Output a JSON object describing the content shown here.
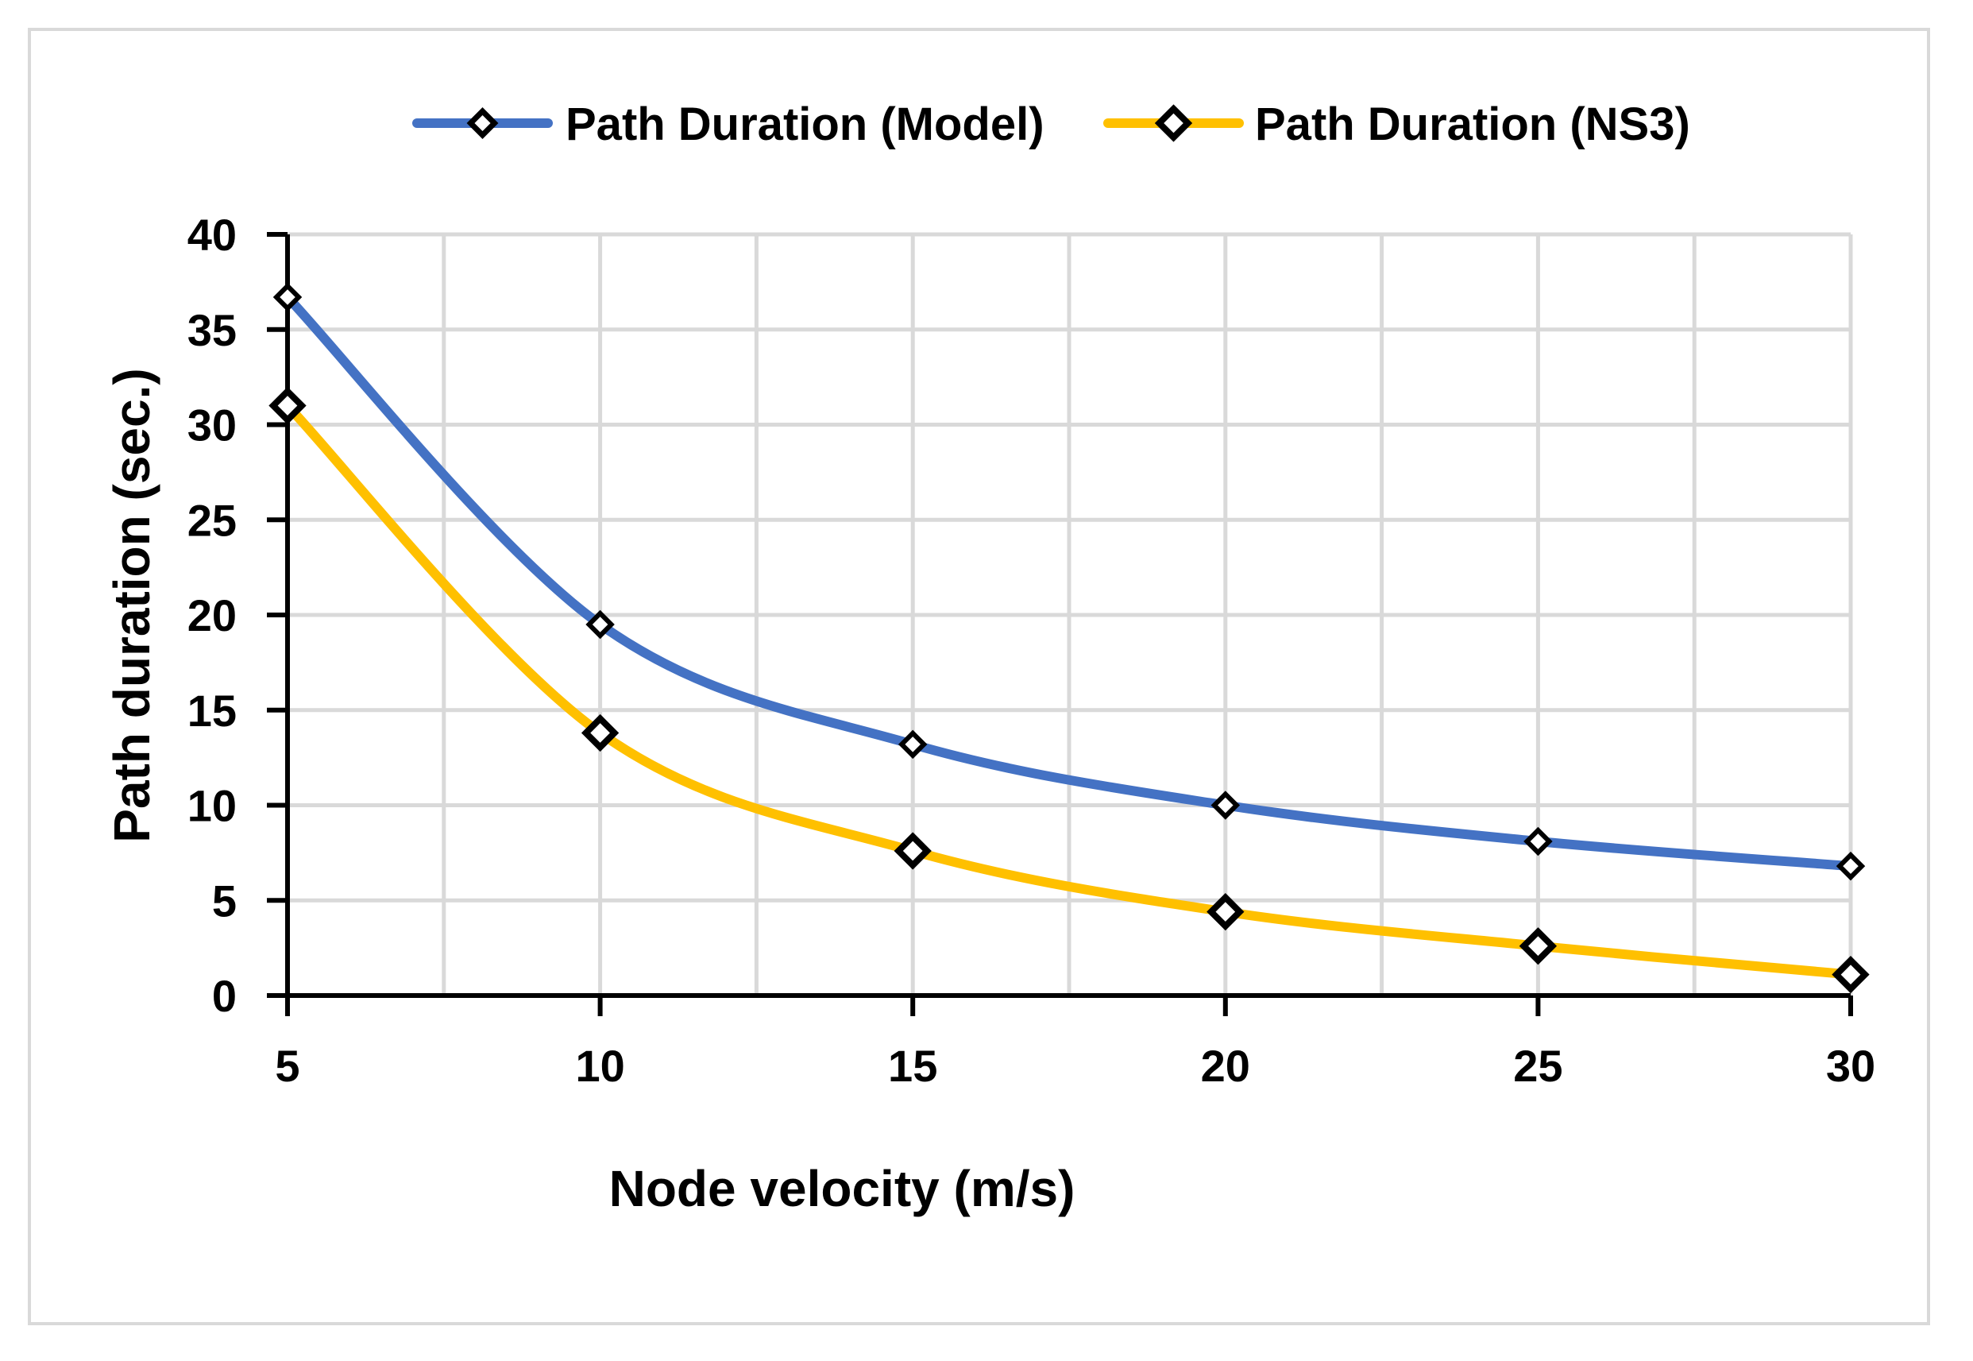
{
  "chart_data": {
    "type": "line",
    "title": "",
    "xlabel": "Node velocity (m/s)",
    "ylabel": "Path duration (sec.)",
    "x": [
      5,
      10,
      15,
      20,
      25,
      30
    ],
    "xlim": [
      5,
      30
    ],
    "ylim": [
      0,
      40
    ],
    "x_ticks": [
      5,
      10,
      15,
      20,
      25,
      30
    ],
    "y_ticks": [
      0,
      5,
      10,
      15,
      20,
      25,
      30,
      35,
      40
    ],
    "grid": true,
    "legend_position": "top",
    "smooth": true,
    "marker": "diamond",
    "series": [
      {
        "name": "Path Duration (Model)",
        "color": "#4472C4",
        "values": [
          36.7,
          19.5,
          13.2,
          10.0,
          8.1,
          6.8
        ]
      },
      {
        "name": "Path Duration (NS3)",
        "color": "#FFC000",
        "values": [
          31.0,
          13.8,
          7.6,
          4.4,
          2.6,
          1.1
        ]
      }
    ]
  }
}
